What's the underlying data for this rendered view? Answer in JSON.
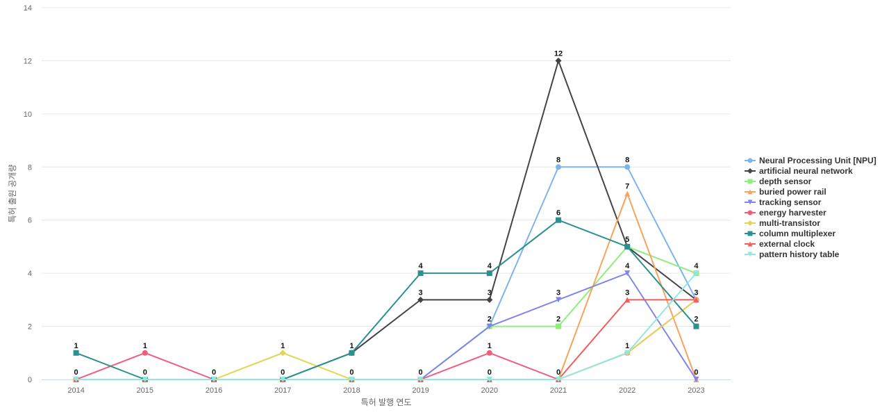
{
  "chart_data": {
    "type": "line",
    "xlabel": "특허 발행 연도",
    "ylabel": "특허 출원 공개량",
    "x": [
      "2014",
      "2015",
      "2016",
      "2017",
      "2018",
      "2019",
      "2020",
      "2021",
      "2022",
      "2023"
    ],
    "ylim": [
      0,
      14
    ],
    "yticks": [
      0,
      2,
      4,
      6,
      8,
      10,
      12,
      14
    ],
    "grid": true,
    "legend_position": "right",
    "series": [
      {
        "name": "Neural Processing Unit [NPU]",
        "color": "#7cb5ec",
        "marker": "circle",
        "values": [
          0,
          0,
          0,
          0,
          0,
          0,
          2,
          8,
          8,
          3
        ]
      },
      {
        "name": "artificial neural network",
        "color": "#434348",
        "marker": "diamond",
        "values": [
          0,
          0,
          0,
          0,
          1,
          3,
          3,
          12,
          5,
          3
        ]
      },
      {
        "name": "depth sensor",
        "color": "#90ed7d",
        "marker": "square",
        "values": [
          0,
          0,
          0,
          0,
          0,
          0,
          2,
          2,
          5,
          4
        ]
      },
      {
        "name": "buried power rail",
        "color": "#f7a35c",
        "marker": "triangle",
        "values": [
          0,
          0,
          0,
          0,
          0,
          0,
          0,
          0,
          7,
          0
        ]
      },
      {
        "name": "tracking sensor",
        "color": "#8085e9",
        "marker": "triangle-down",
        "values": [
          0,
          0,
          0,
          0,
          0,
          0,
          2,
          3,
          4,
          0
        ]
      },
      {
        "name": "energy harvester",
        "color": "#f15c80",
        "marker": "circle",
        "values": [
          0,
          1,
          0,
          0,
          0,
          0,
          1,
          0,
          1,
          3
        ]
      },
      {
        "name": "multi-transistor",
        "color": "#e4d354",
        "marker": "diamond",
        "values": [
          0,
          0,
          0,
          1,
          0,
          0,
          0,
          0,
          1,
          3
        ]
      },
      {
        "name": "column multiplexer",
        "color": "#2b908f",
        "marker": "square",
        "values": [
          1,
          0,
          0,
          0,
          1,
          4,
          4,
          6,
          5,
          2
        ]
      },
      {
        "name": "external clock",
        "color": "#f45b5b",
        "marker": "triangle",
        "values": [
          0,
          0,
          0,
          0,
          0,
          0,
          0,
          0,
          3,
          3
        ]
      },
      {
        "name": "pattern history table",
        "color": "#91e8e1",
        "marker": "triangle-down",
        "values": [
          0,
          0,
          0,
          0,
          0,
          0,
          0,
          0,
          1,
          4
        ]
      }
    ],
    "data_labels": [
      {
        "x": "2014",
        "text": "1",
        "value": 1
      },
      {
        "x": "2014",
        "text": "0",
        "value": 0
      },
      {
        "x": "2015",
        "text": "1",
        "value": 1
      },
      {
        "x": "2015",
        "text": "0",
        "value": 0
      },
      {
        "x": "2016",
        "text": "0",
        "value": 0
      },
      {
        "x": "2017",
        "text": "1",
        "value": 1
      },
      {
        "x": "2017",
        "text": "0",
        "value": 0
      },
      {
        "x": "2018",
        "text": "1",
        "value": 1
      },
      {
        "x": "2018",
        "text": "0",
        "value": 0
      },
      {
        "x": "2019",
        "text": "4",
        "value": 4
      },
      {
        "x": "2019",
        "text": "3",
        "value": 3
      },
      {
        "x": "2019",
        "text": "0",
        "value": 0
      },
      {
        "x": "2020",
        "text": "4",
        "value": 4
      },
      {
        "x": "2020",
        "text": "3",
        "value": 3
      },
      {
        "x": "2020",
        "text": "2",
        "value": 2
      },
      {
        "x": "2020",
        "text": "1",
        "value": 1
      },
      {
        "x": "2020",
        "text": "0",
        "value": 0
      },
      {
        "x": "2021",
        "text": "12",
        "value": 12
      },
      {
        "x": "2021",
        "text": "8",
        "value": 8
      },
      {
        "x": "2021",
        "text": "6",
        "value": 6
      },
      {
        "x": "2021",
        "text": "3",
        "value": 3
      },
      {
        "x": "2021",
        "text": "2",
        "value": 2
      },
      {
        "x": "2021",
        "text": "0",
        "value": 0
      },
      {
        "x": "2022",
        "text": "8",
        "value": 8
      },
      {
        "x": "2022",
        "text": "7",
        "value": 7
      },
      {
        "x": "2022",
        "text": "5",
        "value": 5
      },
      {
        "x": "2022",
        "text": "4",
        "value": 4
      },
      {
        "x": "2022",
        "text": "3",
        "value": 3
      },
      {
        "x": "2022",
        "text": "1",
        "value": 1
      },
      {
        "x": "2023",
        "text": "4",
        "value": 4
      },
      {
        "x": "2023",
        "text": "3",
        "value": 3
      },
      {
        "x": "2023",
        "text": "2",
        "value": 2
      },
      {
        "x": "2023",
        "text": "0",
        "value": 0
      }
    ]
  }
}
